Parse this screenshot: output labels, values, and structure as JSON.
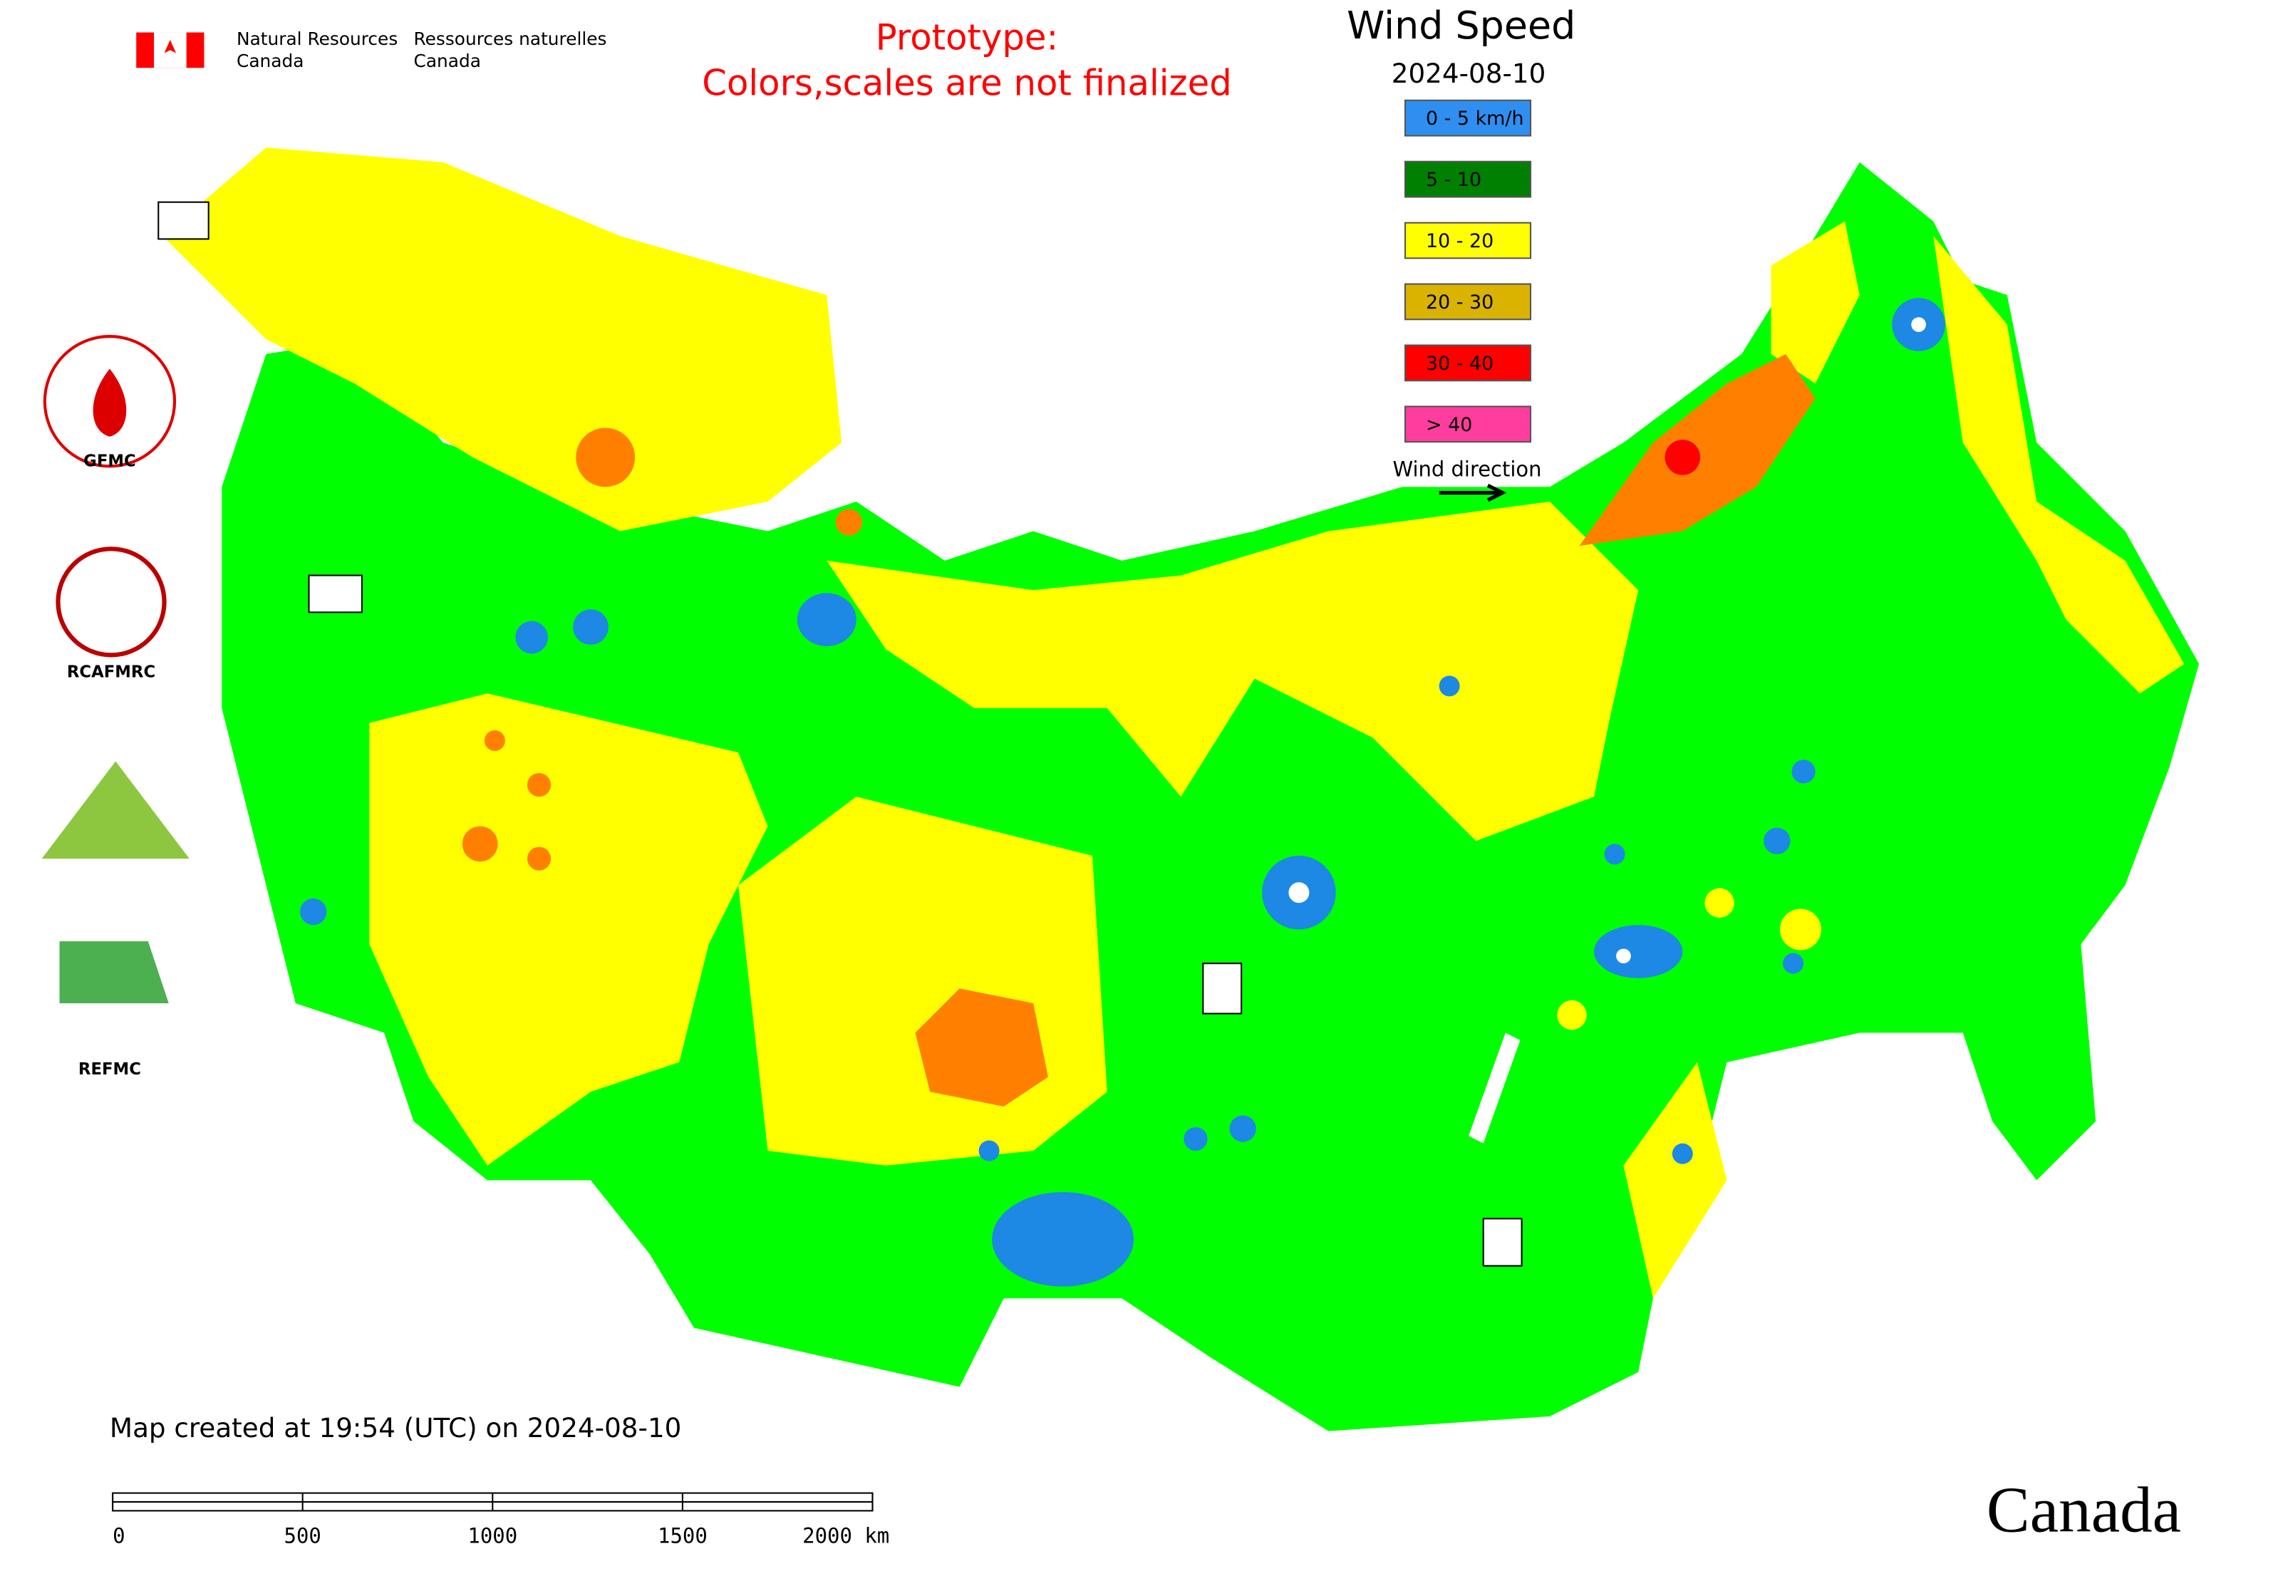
{
  "header": {
    "dept_en": [
      "Natural Resources",
      "Canada"
    ],
    "dept_fr": [
      "Ressources naturelles",
      "Canada"
    ]
  },
  "notice": [
    "Prototype:",
    "Colors,scales are not finalized"
  ],
  "legend": {
    "title": "Wind Speed",
    "date": "2024-08-10",
    "items": [
      {
        "label": "0 - 5 km/h",
        "color": "#2f8ff0"
      },
      {
        "label": "5 - 10",
        "color": "#008000"
      },
      {
        "label": "10 - 20",
        "color": "#ffff00"
      },
      {
        "label": "20 - 30",
        "color": "#d9b300"
      },
      {
        "label": "30 - 40",
        "color": "#ff0000"
      },
      {
        "label": "> 40",
        "color": "#ff3d9e"
      }
    ],
    "wind_direction": "Wind direction"
  },
  "partners": [
    "GFMC",
    "RCAFMRC",
    "REFMC"
  ],
  "footer": {
    "created": "Map created at 19:54 (UTC) on 2024-08-10",
    "scale_labels": [
      "0",
      "500",
      "1000",
      "1500",
      "2000 km"
    ],
    "wordmark": "Canada"
  }
}
